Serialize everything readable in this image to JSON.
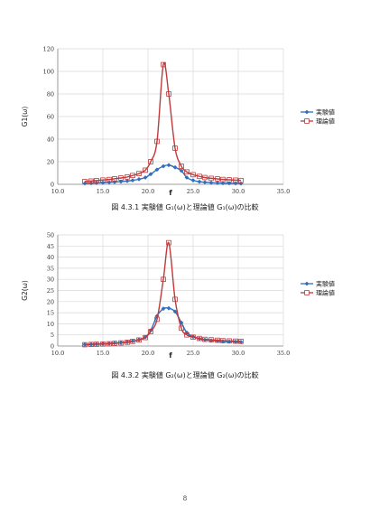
{
  "colors": {
    "measured": "#2e6fbf",
    "theory": "#c0393b",
    "grid": "#d8d8d8",
    "axis": "#888888"
  },
  "charts": [
    {
      "caption": "図 4.3.1 実験値 G₁(ω)と理論値 G₁(ω)の比較",
      "chart_data": {
        "type": "line",
        "xlabel": "f",
        "ylabel": "G1(ω)",
        "xlim": [
          10.0,
          35.0
        ],
        "ylim": [
          0,
          120
        ],
        "xticks": [
          "10.0",
          "15.0",
          "20.0",
          "25.0",
          "30.0",
          "35.0"
        ],
        "yticks": [
          "0",
          "20",
          "40",
          "60",
          "80",
          "100",
          "120"
        ],
        "legend_position": "right",
        "grid": true,
        "series": [
          {
            "name": "実験値",
            "marker": "diamond",
            "x": [
              13.0,
              13.7,
              14.3,
              15.0,
              15.7,
              16.3,
              17.0,
              17.7,
              18.3,
              19.0,
              19.7,
              20.3,
              21.0,
              21.7,
              22.3,
              23.0,
              23.7,
              24.3,
              25.0,
              25.7,
              26.3,
              27.0,
              27.7,
              28.3,
              29.0,
              29.7,
              30.3
            ],
            "y": [
              0.8,
              1.0,
              1.2,
              1.4,
              1.7,
              2.0,
              2.4,
              2.9,
              3.5,
              4.5,
              6.0,
              9.0,
              13.0,
              16.0,
              17.0,
              15.0,
              12.0,
              6.0,
              3.5,
              2.3,
              1.8,
              1.4,
              1.2,
              1.0,
              0.9,
              0.8,
              0.7
            ]
          },
          {
            "name": "理論値",
            "marker": "square",
            "x": [
              13.0,
              13.7,
              14.3,
              15.0,
              15.7,
              16.3,
              17.0,
              17.7,
              18.3,
              19.0,
              19.7,
              20.3,
              21.0,
              21.7,
              22.3,
              23.0,
              23.7,
              24.3,
              25.0,
              25.7,
              26.3,
              27.0,
              27.7,
              28.3,
              29.0,
              29.7,
              30.3
            ],
            "y": [
              2.5,
              2.9,
              3.3,
              3.8,
              4.3,
              4.9,
              5.6,
              6.5,
              7.8,
              9.5,
              12.5,
              20.0,
              38.0,
              106.0,
              80.0,
              32.0,
              16.0,
              11.0,
              8.5,
              7.0,
              6.0,
              5.3,
              4.8,
              4.3,
              4.0,
              3.7,
              3.4
            ]
          }
        ]
      }
    },
    {
      "caption": "図 4.3.2 実験値 G₂(ω)と理論値 G₂(ω)の比較",
      "chart_data": {
        "type": "line",
        "xlabel": "f",
        "ylabel": "G2(ω)",
        "xlim": [
          10.0,
          35.0
        ],
        "ylim": [
          0,
          50
        ],
        "xticks": [
          "10.0",
          "15.0",
          "20.0",
          "25.0",
          "30.0",
          "35.0"
        ],
        "yticks": [
          "0",
          "5",
          "10",
          "15",
          "20",
          "25",
          "30",
          "35",
          "40",
          "45",
          "50"
        ],
        "legend_position": "right",
        "grid": true,
        "series": [
          {
            "name": "実験値",
            "marker": "diamond",
            "x": [
              13.0,
              13.7,
              14.3,
              15.0,
              15.7,
              16.3,
              17.0,
              17.7,
              18.3,
              19.0,
              19.7,
              20.3,
              21.0,
              21.7,
              22.3,
              23.0,
              23.7,
              24.3,
              25.0,
              25.7,
              26.3,
              27.0,
              27.7,
              28.3,
              29.0,
              29.7,
              30.3
            ],
            "y": [
              0.7,
              0.8,
              0.9,
              1.0,
              1.1,
              1.3,
              1.5,
              1.8,
              2.2,
              2.8,
              4.0,
              7.0,
              13.5,
              16.8,
              17.0,
              15.5,
              10.5,
              6.0,
              4.2,
              3.3,
              2.8,
              2.5,
              2.3,
              2.1,
              2.0,
              1.9,
              1.8
            ]
          },
          {
            "name": "理論値",
            "marker": "square",
            "x": [
              13.0,
              13.7,
              14.3,
              15.0,
              15.7,
              16.3,
              17.0,
              17.7,
              18.3,
              19.0,
              19.7,
              20.3,
              21.0,
              21.7,
              22.3,
              23.0,
              23.7,
              24.3,
              25.0,
              25.7,
              26.3,
              27.0,
              27.7,
              28.3,
              29.0,
              29.7,
              30.3
            ],
            "y": [
              0.6,
              0.7,
              0.8,
              0.9,
              1.0,
              1.2,
              1.4,
              1.7,
              2.1,
              2.7,
              3.8,
              6.5,
              12.0,
              30.0,
              46.5,
              21.0,
              8.0,
              5.0,
              4.0,
              3.4,
              3.0,
              2.8,
              2.6,
              2.4,
              2.3,
              2.2,
              2.1
            ]
          }
        ]
      }
    }
  ],
  "page_number": "8"
}
